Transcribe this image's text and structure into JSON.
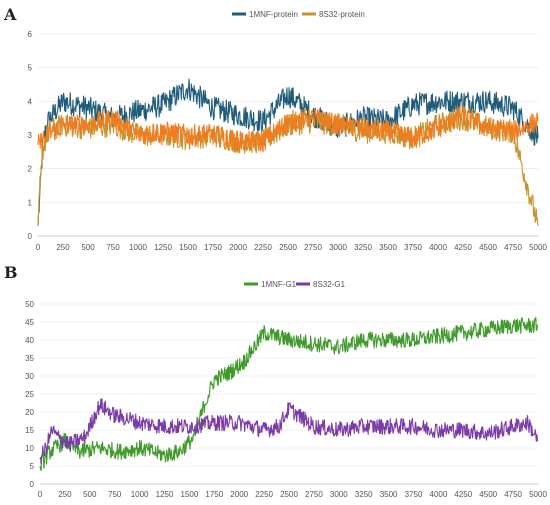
{
  "chart_data": [
    {
      "panel_label": "A",
      "type": "line",
      "xlim": [
        0,
        5000
      ],
      "ylim": [
        0,
        6
      ],
      "x_ticks": [
        "0",
        "250",
        "500",
        "750",
        "1000",
        "1250",
        "1500",
        "1750",
        "2000",
        "2250",
        "2500",
        "2750",
        "3000",
        "3250",
        "3500",
        "3750",
        "4000",
        "4250",
        "4500",
        "4750",
        "5000"
      ],
      "y_ticks": [
        "0",
        "1",
        "2",
        "3",
        "4",
        "5",
        "6"
      ],
      "grid": true,
      "legend_position": "top-center",
      "series": [
        {
          "name": "1MNF-protein",
          "color": "#1f5c7a",
          "x": [
            0,
            50,
            100,
            250,
            500,
            750,
            1000,
            1250,
            1500,
            1750,
            2000,
            2250,
            2500,
            2750,
            3000,
            3250,
            3500,
            3750,
            4000,
            4250,
            4500,
            4750,
            5000
          ],
          "values": [
            0.3,
            2.8,
            3.4,
            4.0,
            3.8,
            3.5,
            3.7,
            3.9,
            4.4,
            3.8,
            3.6,
            3.4,
            4.2,
            3.6,
            3.2,
            3.5,
            3.4,
            3.9,
            4.0,
            4.0,
            4.0,
            3.8,
            2.9
          ]
        },
        {
          "name": "8S32-protein",
          "color": "#c8922e",
          "x": [
            0,
            50,
            100,
            250,
            500,
            750,
            1000,
            1250,
            1500,
            1750,
            2000,
            2250,
            2500,
            2750,
            3000,
            3250,
            3500,
            3750,
            4000,
            4250,
            4500,
            4750,
            5000
          ],
          "values": [
            0.3,
            2.6,
            3.1,
            3.3,
            3.2,
            3.3,
            3.0,
            3.0,
            2.9,
            3.0,
            2.8,
            2.8,
            3.3,
            3.4,
            3.3,
            3.1,
            3.1,
            2.9,
            3.3,
            3.5,
            3.2,
            3.1,
            0.3
          ]
        }
      ],
      "overlay_series": {
        "name": "",
        "color": "#f27b1e",
        "x": [
          0,
          100,
          250,
          500,
          750,
          1000,
          1250,
          1500,
          1750,
          2000,
          2250,
          2500,
          2750,
          3000,
          3250,
          3500,
          3750,
          4000,
          4250,
          4500,
          4750,
          5000
        ],
        "values": [
          2.7,
          3.0,
          3.3,
          3.3,
          3.5,
          3.0,
          3.1,
          3.0,
          3.0,
          2.8,
          2.8,
          3.4,
          3.5,
          3.3,
          3.2,
          3.1,
          2.9,
          3.2,
          3.6,
          3.2,
          3.1,
          3.4
        ]
      }
    },
    {
      "panel_label": "B",
      "type": "line",
      "xlim": [
        0,
        5000
      ],
      "ylim": [
        0,
        50
      ],
      "x_ticks": [
        "0",
        "250",
        "500",
        "750",
        "1000",
        "1250",
        "1500",
        "1750",
        "2000",
        "2250",
        "2500",
        "2750",
        "3000",
        "3250",
        "3500",
        "3750",
        "4000",
        "4250",
        "4500",
        "4750",
        "5000"
      ],
      "y_ticks": [
        "0",
        "5",
        "10",
        "15",
        "20",
        "25",
        "30",
        "35",
        "40",
        "45",
        "50"
      ],
      "grid": true,
      "legend_position": "top-center",
      "series": [
        {
          "name": "1MNF-G1",
          "color": "#3f9a2a",
          "x": [
            0,
            100,
            250,
            400,
            600,
            800,
            1000,
            1250,
            1400,
            1550,
            1650,
            1750,
            1900,
            2050,
            2150,
            2250,
            2500,
            2750,
            3000,
            3250,
            3500,
            3750,
            4000,
            4250,
            4500,
            4750,
            5000
          ],
          "values": [
            5,
            9,
            12,
            9,
            10,
            9,
            10,
            8,
            9,
            13,
            22,
            29,
            31,
            34,
            38,
            42,
            40,
            39,
            38,
            40,
            40,
            40,
            41,
            42,
            43,
            44,
            44
          ]
        },
        {
          "name": "8S32-G1",
          "color": "#7a3aa8",
          "x": [
            0,
            60,
            120,
            180,
            300,
            450,
            600,
            750,
            900,
            1000,
            1250,
            1500,
            1750,
            2000,
            2250,
            2400,
            2500,
            2750,
            3000,
            3250,
            3500,
            3750,
            4000,
            4250,
            4500,
            4750,
            4900,
            5000
          ],
          "values": [
            7,
            10,
            15,
            13,
            11,
            13,
            22,
            19,
            18,
            17,
            16,
            16,
            17,
            17,
            15,
            16,
            21,
            16,
            15,
            16,
            16,
            16,
            15,
            15,
            14,
            16,
            17,
            12
          ]
        }
      ]
    }
  ]
}
